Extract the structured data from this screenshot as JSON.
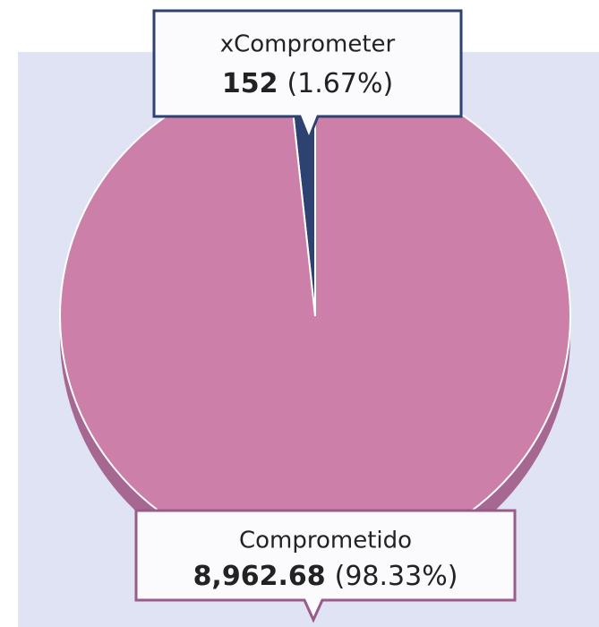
{
  "chart_data": {
    "type": "pie",
    "categories": [
      "xComprometer",
      "Comprometido"
    ],
    "values": [
      152,
      8962.68
    ],
    "value_labels": [
      "152",
      "8,962.68"
    ],
    "percent_labels": [
      "(1.67%)",
      "(98.33%)"
    ],
    "colors": [
      "#2e4272",
      "#cc7fa9"
    ]
  }
}
